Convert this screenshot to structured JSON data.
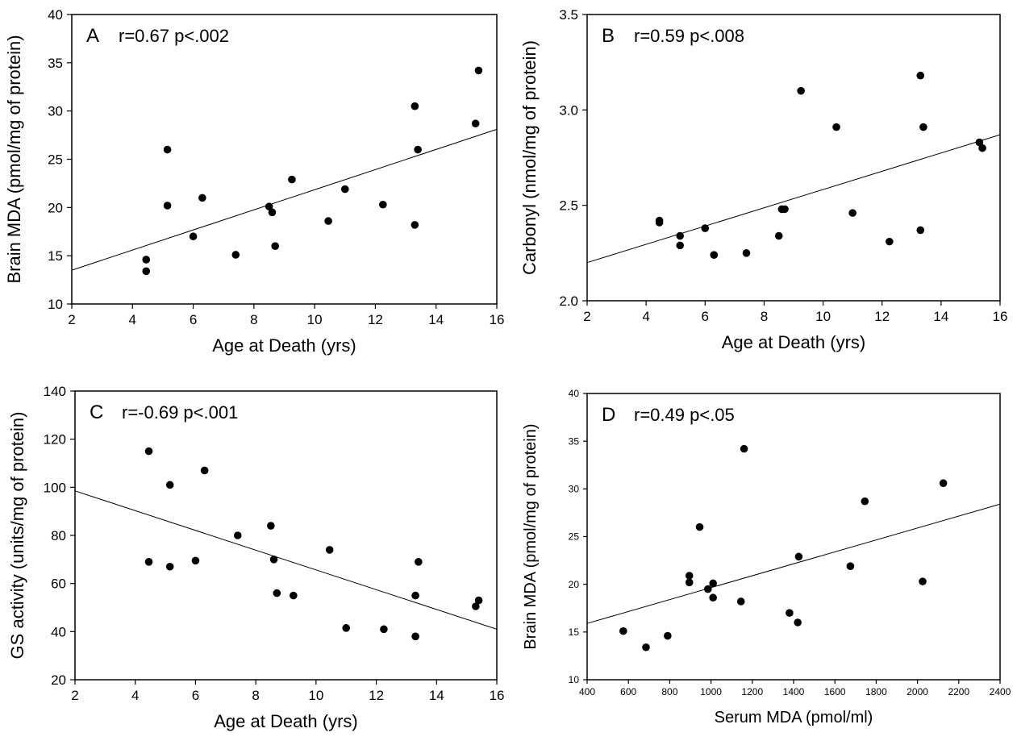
{
  "chart_data": [
    {
      "type": "scatter",
      "panel": "A",
      "annotation": "r=0.67 p<.002",
      "xlabel": "Age at Death (yrs)",
      "ylabel": "Brain MDA (pmol/mg of protein)",
      "xlim": [
        2,
        16
      ],
      "ylim": [
        10,
        40
      ],
      "xticks": [
        "2",
        "4",
        "6",
        "8",
        "10",
        "12",
        "14",
        "16"
      ],
      "yticks": [
        "10",
        "15",
        "20",
        "25",
        "30",
        "35",
        "40"
      ],
      "points": [
        {
          "x": 4.45,
          "y": 14.6
        },
        {
          "x": 4.45,
          "y": 13.4
        },
        {
          "x": 5.15,
          "y": 26.0
        },
        {
          "x": 5.15,
          "y": 20.2
        },
        {
          "x": 6.0,
          "y": 17.0
        },
        {
          "x": 6.3,
          "y": 21.0
        },
        {
          "x": 7.4,
          "y": 15.1
        },
        {
          "x": 8.5,
          "y": 20.1
        },
        {
          "x": 8.6,
          "y": 19.5
        },
        {
          "x": 8.7,
          "y": 16.0
        },
        {
          "x": 9.25,
          "y": 22.9
        },
        {
          "x": 10.45,
          "y": 18.6
        },
        {
          "x": 11.0,
          "y": 21.9
        },
        {
          "x": 12.25,
          "y": 20.3
        },
        {
          "x": 13.3,
          "y": 30.5
        },
        {
          "x": 13.3,
          "y": 18.2
        },
        {
          "x": 13.4,
          "y": 26.0
        },
        {
          "x": 15.3,
          "y": 28.7
        },
        {
          "x": 15.4,
          "y": 34.2
        }
      ],
      "fit": [
        {
          "x": 2,
          "y": 13.5
        },
        {
          "x": 16,
          "y": 28.1
        }
      ]
    },
    {
      "type": "scatter",
      "panel": "B",
      "annotation": "r=0.59 p<.008",
      "xlabel": "Age at Death (yrs)",
      "ylabel": "Carbonyl (nmol/mg of protein)",
      "xlim": [
        2,
        16
      ],
      "ylim": [
        2.0,
        3.5
      ],
      "xticks": [
        "2",
        "4",
        "6",
        "8",
        "10",
        "12",
        "14",
        "16"
      ],
      "yticks": [
        "2.0",
        "2.5",
        "3.0",
        "3.5"
      ],
      "points": [
        {
          "x": 4.45,
          "y": 2.42
        },
        {
          "x": 4.45,
          "y": 2.41
        },
        {
          "x": 5.15,
          "y": 2.34
        },
        {
          "x": 5.15,
          "y": 2.29
        },
        {
          "x": 6.0,
          "y": 2.38
        },
        {
          "x": 6.3,
          "y": 2.24
        },
        {
          "x": 7.4,
          "y": 2.25
        },
        {
          "x": 8.5,
          "y": 2.34
        },
        {
          "x": 8.6,
          "y": 2.48
        },
        {
          "x": 8.7,
          "y": 2.48
        },
        {
          "x": 9.25,
          "y": 3.1
        },
        {
          "x": 10.45,
          "y": 2.91
        },
        {
          "x": 11.0,
          "y": 2.46
        },
        {
          "x": 12.25,
          "y": 2.31
        },
        {
          "x": 13.3,
          "y": 3.18
        },
        {
          "x": 13.3,
          "y": 2.37
        },
        {
          "x": 13.4,
          "y": 2.91
        },
        {
          "x": 15.3,
          "y": 2.83
        },
        {
          "x": 15.4,
          "y": 2.8
        }
      ],
      "fit": [
        {
          "x": 2,
          "y": 2.2
        },
        {
          "x": 16,
          "y": 2.87
        }
      ]
    },
    {
      "type": "scatter",
      "panel": "C",
      "annotation": "r=-0.69 p<.001",
      "xlabel": "Age at Death (yrs)",
      "ylabel": "GS activity (units/mg of protein)",
      "xlim": [
        2,
        16
      ],
      "ylim": [
        20,
        140
      ],
      "xticks": [
        "2",
        "4",
        "6",
        "8",
        "10",
        "12",
        "14",
        "16"
      ],
      "yticks": [
        "20",
        "40",
        "60",
        "80",
        "100",
        "120",
        "140"
      ],
      "points": [
        {
          "x": 4.45,
          "y": 115
        },
        {
          "x": 4.45,
          "y": 69
        },
        {
          "x": 5.15,
          "y": 101
        },
        {
          "x": 5.15,
          "y": 67
        },
        {
          "x": 6.0,
          "y": 69.5
        },
        {
          "x": 6.3,
          "y": 107
        },
        {
          "x": 7.4,
          "y": 80
        },
        {
          "x": 8.5,
          "y": 84
        },
        {
          "x": 8.6,
          "y": 70
        },
        {
          "x": 8.7,
          "y": 56
        },
        {
          "x": 9.25,
          "y": 55
        },
        {
          "x": 10.45,
          "y": 74
        },
        {
          "x": 11.0,
          "y": 41.5
        },
        {
          "x": 12.25,
          "y": 41
        },
        {
          "x": 13.3,
          "y": 38
        },
        {
          "x": 13.3,
          "y": 55
        },
        {
          "x": 13.4,
          "y": 69
        },
        {
          "x": 15.3,
          "y": 50.5
        },
        {
          "x": 15.4,
          "y": 53
        }
      ],
      "fit": [
        {
          "x": 2,
          "y": 98.5
        },
        {
          "x": 16,
          "y": 41
        }
      ]
    },
    {
      "type": "scatter",
      "panel": "D",
      "annotation": "r=0.49 p<.05",
      "xlabel": "Serum MDA (pmol/ml)",
      "ylabel": "Brain MDA (pmol/mg of protein)",
      "xlim": [
        400,
        2400
      ],
      "ylim": [
        10,
        40
      ],
      "xticks": [
        "400",
        "600",
        "800",
        "1000",
        "1200",
        "1400",
        "1600",
        "1800",
        "2000",
        "2200",
        "2400"
      ],
      "yticks": [
        "10",
        "15",
        "20",
        "25",
        "30",
        "35",
        "40"
      ],
      "points": [
        {
          "x": 575,
          "y": 15.1
        },
        {
          "x": 685,
          "y": 13.4
        },
        {
          "x": 790,
          "y": 14.6
        },
        {
          "x": 895,
          "y": 20.9
        },
        {
          "x": 895,
          "y": 20.2
        },
        {
          "x": 945,
          "y": 26.0
        },
        {
          "x": 985,
          "y": 19.5
        },
        {
          "x": 1010,
          "y": 20.1
        },
        {
          "x": 1010,
          "y": 18.6
        },
        {
          "x": 1145,
          "y": 18.2
        },
        {
          "x": 1160,
          "y": 34.2
        },
        {
          "x": 1380,
          "y": 17.0
        },
        {
          "x": 1420,
          "y": 16.0
        },
        {
          "x": 1425,
          "y": 22.9
        },
        {
          "x": 1675,
          "y": 21.9
        },
        {
          "x": 1745,
          "y": 28.7
        },
        {
          "x": 2025,
          "y": 20.3
        },
        {
          "x": 2125,
          "y": 30.6
        }
      ],
      "fit": [
        {
          "x": 400,
          "y": 15.9
        },
        {
          "x": 2400,
          "y": 28.4
        }
      ]
    }
  ]
}
